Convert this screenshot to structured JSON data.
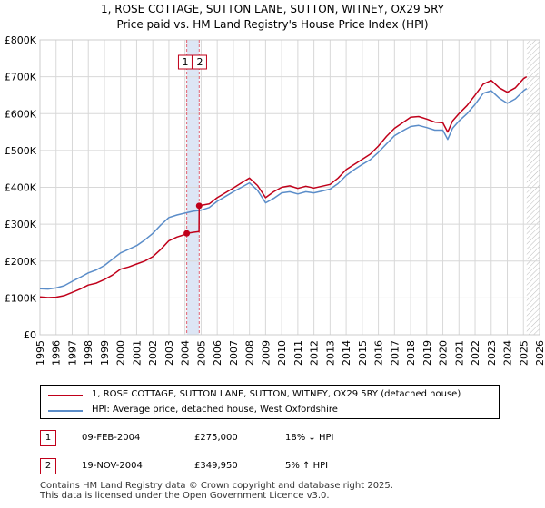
{
  "chart_data": {
    "type": "line",
    "title": "1, ROSE COTTAGE, SUTTON LANE, SUTTON, WITNEY, OX29 5RY",
    "subtitle": "Price paid vs. HM Land Registry's House Price Index (HPI)",
    "xlabel": "",
    "ylabel": "",
    "xlim": [
      1995,
      2026
    ],
    "ylim": [
      0,
      800000
    ],
    "y_ticks": [
      {
        "value": 0,
        "label": "£0"
      },
      {
        "value": 100000,
        "label": "£100K"
      },
      {
        "value": 200000,
        "label": "£200K"
      },
      {
        "value": 300000,
        "label": "£300K"
      },
      {
        "value": 400000,
        "label": "£400K"
      },
      {
        "value": 500000,
        "label": "£500K"
      },
      {
        "value": 600000,
        "label": "£600K"
      },
      {
        "value": 700000,
        "label": "£700K"
      },
      {
        "value": 800000,
        "label": "£800K"
      }
    ],
    "x_ticks": [
      "1995",
      "1996",
      "1997",
      "1998",
      "1999",
      "2000",
      "2001",
      "2002",
      "2003",
      "2004",
      "2005",
      "2006",
      "2007",
      "2008",
      "2009",
      "2010",
      "2011",
      "2012",
      "2013",
      "2014",
      "2015",
      "2016",
      "2017",
      "2018",
      "2019",
      "2020",
      "2021",
      "2022",
      "2023",
      "2024",
      "2025",
      "2026"
    ],
    "grid": true,
    "shaded_region": {
      "x_start": 2004.11,
      "x_end": 2004.88,
      "color": "#dde6f5"
    },
    "forecast_region": {
      "x_start": 2025.2,
      "x_end": 2026
    },
    "markers": [
      {
        "label": "1",
        "x": 2004.11
      },
      {
        "label": "2",
        "x": 2004.88
      }
    ],
    "sale_points": [
      {
        "x": 2004.11,
        "y": 275000
      },
      {
        "x": 2004.88,
        "y": 349950
      }
    ],
    "series": [
      {
        "name": "1, ROSE COTTAGE, SUTTON LANE, SUTTON, WITNEY, OX29 5RY (detached house)",
        "color": "#c0001a",
        "x": [
          1995.0,
          1995.5,
          1996.0,
          1996.5,
          1997.0,
          1997.5,
          1998.0,
          1998.5,
          1999.0,
          1999.5,
          2000.0,
          2000.5,
          2001.0,
          2001.5,
          2002.0,
          2002.5,
          2003.0,
          2003.5,
          2004.0,
          2004.11,
          2004.5,
          2004.87,
          2004.88,
          2005.5,
          2006.0,
          2006.5,
          2007.0,
          2007.5,
          2008.0,
          2008.5,
          2009.0,
          2009.5,
          2010.0,
          2010.5,
          2011.0,
          2011.5,
          2012.0,
          2012.5,
          2013.0,
          2013.5,
          2014.0,
          2014.5,
          2015.0,
          2015.5,
          2016.0,
          2016.5,
          2017.0,
          2017.5,
          2018.0,
          2018.5,
          2019.0,
          2019.5,
          2020.0,
          2020.3,
          2020.6,
          2021.0,
          2021.5,
          2022.0,
          2022.5,
          2023.0,
          2023.5,
          2024.0,
          2024.5,
          2025.0,
          2025.2
        ],
        "values": [
          103000,
          101000,
          102000,
          106000,
          115000,
          124000,
          135000,
          140000,
          150000,
          162000,
          178000,
          184000,
          192000,
          200000,
          212000,
          232000,
          255000,
          265000,
          272000,
          275000,
          278000,
          280000,
          349950,
          355000,
          372000,
          385000,
          398000,
          412000,
          425000,
          405000,
          372000,
          388000,
          400000,
          404000,
          397000,
          403000,
          398000,
          403000,
          408000,
          425000,
          448000,
          462000,
          476000,
          490000,
          512000,
          538000,
          560000,
          575000,
          590000,
          592000,
          585000,
          577000,
          575000,
          550000,
          580000,
          600000,
          622000,
          650000,
          680000,
          690000,
          670000,
          658000,
          670000,
          695000,
          700000
        ]
      },
      {
        "name": "HPI: Average price, detached house, West Oxfordshire",
        "color": "#5b8dc9",
        "x": [
          1995.0,
          1995.5,
          1996.0,
          1996.5,
          1997.0,
          1997.5,
          1998.0,
          1998.5,
          1999.0,
          1999.5,
          2000.0,
          2000.5,
          2001.0,
          2001.5,
          2002.0,
          2002.5,
          2003.0,
          2003.5,
          2004.0,
          2004.5,
          2005.0,
          2005.5,
          2006.0,
          2006.5,
          2007.0,
          2007.5,
          2008.0,
          2008.5,
          2009.0,
          2009.5,
          2010.0,
          2010.5,
          2011.0,
          2011.5,
          2012.0,
          2012.5,
          2013.0,
          2013.5,
          2014.0,
          2014.5,
          2015.0,
          2015.5,
          2016.0,
          2016.5,
          2017.0,
          2017.5,
          2018.0,
          2018.5,
          2019.0,
          2019.5,
          2020.0,
          2020.3,
          2020.6,
          2021.0,
          2021.5,
          2022.0,
          2022.5,
          2023.0,
          2023.5,
          2024.0,
          2024.5,
          2025.0,
          2025.2
        ],
        "values": [
          125000,
          124000,
          127000,
          133000,
          145000,
          156000,
          168000,
          176000,
          188000,
          205000,
          222000,
          232000,
          242000,
          257000,
          275000,
          298000,
          318000,
          325000,
          330000,
          335000,
          338000,
          345000,
          362000,
          375000,
          388000,
          400000,
          412000,
          392000,
          358000,
          370000,
          385000,
          388000,
          382000,
          388000,
          385000,
          390000,
          395000,
          410000,
          432000,
          448000,
          462000,
          475000,
          495000,
          518000,
          540000,
          553000,
          565000,
          568000,
          562000,
          555000,
          555000,
          530000,
          560000,
          580000,
          600000,
          625000,
          655000,
          662000,
          642000,
          628000,
          640000,
          662000,
          668000
        ]
      }
    ]
  },
  "legend": {
    "entries": [
      {
        "label": "1, ROSE COTTAGE, SUTTON LANE, SUTTON, WITNEY, OX29 5RY (detached house)",
        "color": "#c0001a"
      },
      {
        "label": "HPI: Average price, detached house, West Oxfordshire",
        "color": "#5b8dc9"
      }
    ]
  },
  "transactions": [
    {
      "num": "1",
      "date": "09-FEB-2004",
      "price": "£275,000",
      "hpi": "18% ↓ HPI"
    },
    {
      "num": "2",
      "date": "19-NOV-2004",
      "price": "£349,950",
      "hpi": "5% ↑ HPI"
    }
  ],
  "footer": {
    "line1": "Contains HM Land Registry data © Crown copyright and database right 2025.",
    "line2": "This data is licensed under the Open Government Licence v3.0."
  }
}
